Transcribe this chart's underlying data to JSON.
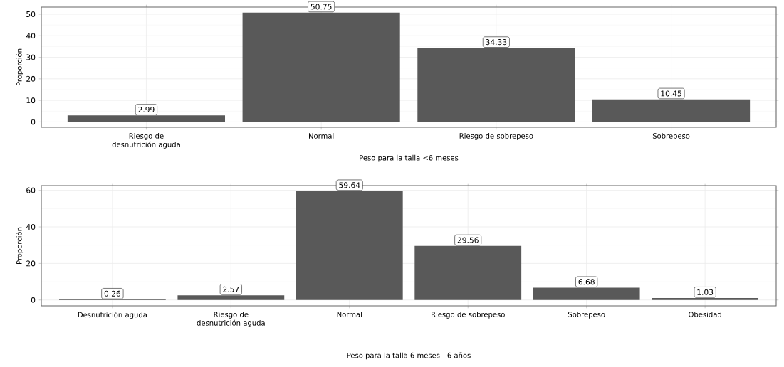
{
  "chart_data": [
    {
      "type": "bar",
      "xlabel": "Peso para la talla <6 meses",
      "ylabel": "Proporción",
      "categories": [
        "Riesgo de desnutrición aguda",
        "Normal",
        "Riesgo de sobrepeso",
        "Sobrepeso"
      ],
      "values": [
        2.99,
        50.75,
        34.33,
        10.45
      ],
      "color": "#595959",
      "ylim": [
        -2.5,
        53.3
      ],
      "yticks": [
        0,
        10,
        20,
        30,
        40,
        50
      ],
      "grid": true,
      "data_labels": true
    },
    {
      "type": "bar",
      "xlabel": "Peso para la talla 6 meses - 6 años",
      "ylabel": "Proporción",
      "categories": [
        "Desnutrición aguda",
        "Riesgo de desnutrición aguda",
        "Normal",
        "Riesgo de sobrepeso",
        "Sobrepeso",
        "Obesidad"
      ],
      "values": [
        0.26,
        2.57,
        59.64,
        29.56,
        6.68,
        1.03
      ],
      "color": "#595959",
      "ylim": [
        -3.2,
        62.6
      ],
      "yticks": [
        0,
        20,
        40,
        60
      ],
      "grid": true,
      "data_labels": true
    }
  ]
}
